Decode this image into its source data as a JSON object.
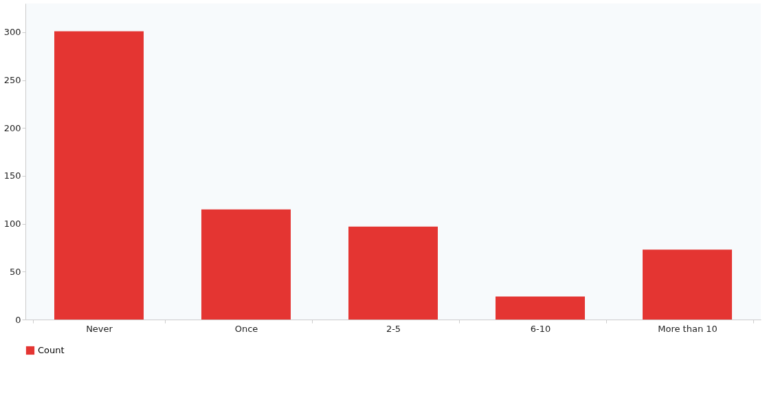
{
  "chart_data": {
    "type": "bar",
    "categories": [
      "Never",
      "Once",
      "2-5",
      "6-10",
      "More than 10"
    ],
    "series": [
      {
        "name": "Count",
        "color": "#e43532",
        "values": [
          301,
          115,
          97,
          24,
          73
        ]
      }
    ],
    "ylim": [
      0,
      330
    ],
    "yticks": [
      0,
      50,
      100,
      150,
      200,
      250,
      300
    ],
    "grid": false,
    "legend": "bottom"
  }
}
